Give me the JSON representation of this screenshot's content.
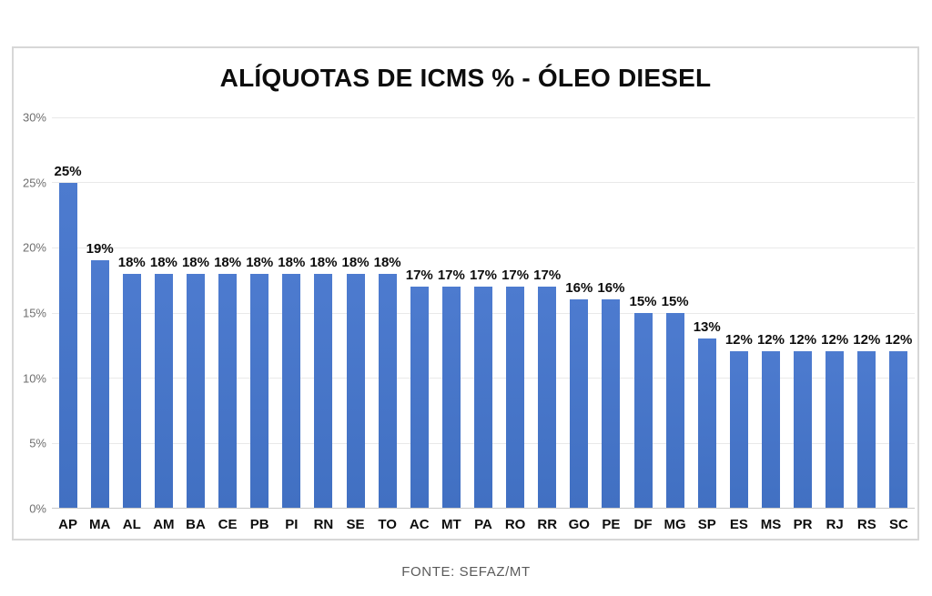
{
  "chart_data": {
    "type": "bar",
    "title": "ALÍQUOTAS DE ICMS % - ÓLEO DIESEL",
    "categories": [
      "AP",
      "MA",
      "AL",
      "AM",
      "BA",
      "CE",
      "PB",
      "PI",
      "RN",
      "SE",
      "TO",
      "AC",
      "MT",
      "PA",
      "RO",
      "RR",
      "GO",
      "PE",
      "DF",
      "MG",
      "SP",
      "ES",
      "MS",
      "PR",
      "RJ",
      "RS",
      "SC"
    ],
    "values": [
      25,
      19,
      18,
      18,
      18,
      18,
      18,
      18,
      18,
      18,
      18,
      17,
      17,
      17,
      17,
      17,
      16,
      16,
      15,
      15,
      13,
      12,
      12,
      12,
      12,
      12,
      12
    ],
    "value_labels": [
      "25%",
      "19%",
      "18%",
      "18%",
      "18%",
      "18%",
      "18%",
      "18%",
      "18%",
      "18%",
      "18%",
      "17%",
      "17%",
      "17%",
      "17%",
      "17%",
      "16%",
      "16%",
      "15%",
      "15%",
      "13%",
      "12%",
      "12%",
      "12%",
      "12%",
      "12%",
      "12%"
    ],
    "xlabel": "",
    "ylabel": "",
    "ylim": [
      0,
      30
    ],
    "yticks": [
      0,
      5,
      10,
      15,
      20,
      25,
      30
    ],
    "ytick_labels": [
      "0%",
      "5%",
      "10%",
      "15%",
      "20%",
      "25%",
      "30%"
    ],
    "grid": true,
    "legend": false,
    "bar_color_top": "#4d7bcf",
    "bar_color_bottom": "#4170c2"
  },
  "footer": {
    "source": "FONTE: SEFAZ/MT"
  }
}
